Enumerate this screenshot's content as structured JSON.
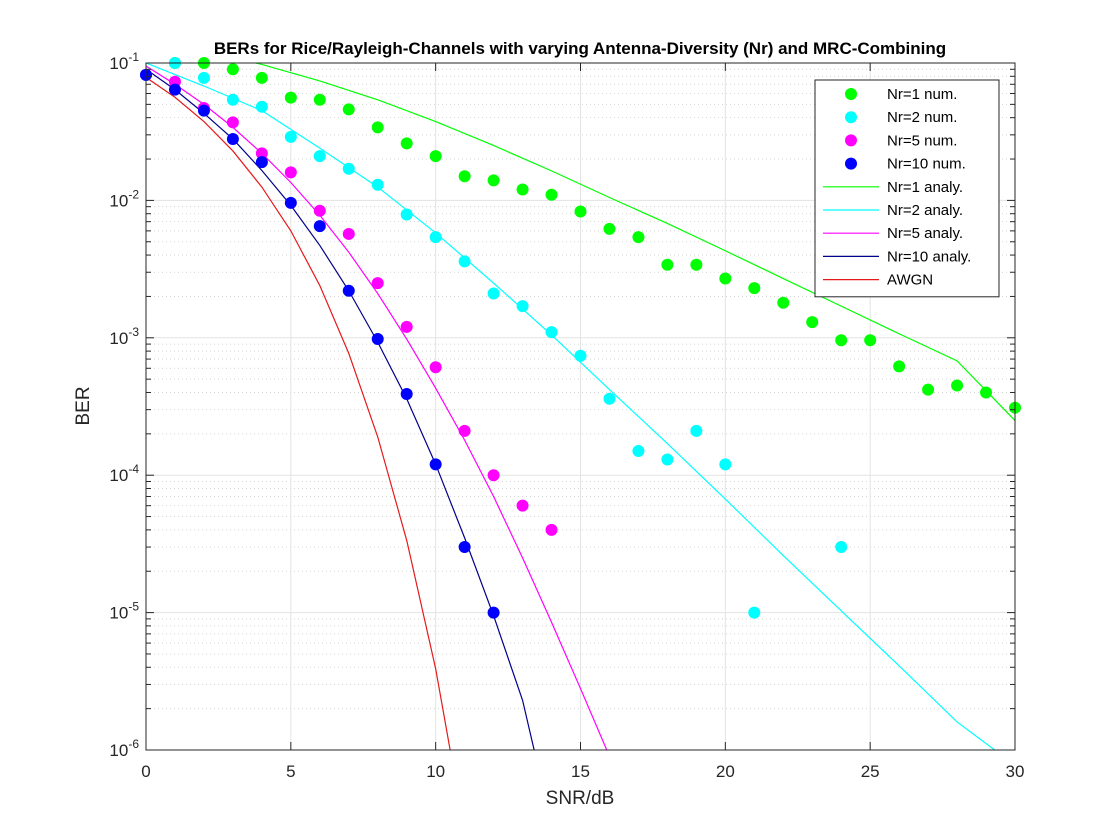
{
  "chart_data": {
    "type": "line",
    "title": "BERs for Rice/Rayleigh-Channels with varying Antenna-Diversity (Nr) and MRC-Combining",
    "xlabel": "SNR/dB",
    "ylabel": "BER",
    "xlim": [
      0,
      30
    ],
    "ylim": [
      1e-06,
      0.1
    ],
    "yscale": "log",
    "grid": true,
    "minor_grid": true,
    "legend_position": "top-right",
    "x_ticks": [
      0,
      5,
      10,
      15,
      20,
      25,
      30
    ],
    "x_tick_labels": [
      "0",
      "5",
      "10",
      "15",
      "20",
      "25",
      "30"
    ],
    "y_ticks": [
      {
        "value": 1e-06,
        "base": "10",
        "exp": "-6"
      },
      {
        "value": 1e-05,
        "base": "10",
        "exp": "-5"
      },
      {
        "value": 0.0001,
        "base": "10",
        "exp": "-4"
      },
      {
        "value": 0.001,
        "base": "10",
        "exp": "-3"
      },
      {
        "value": 0.01,
        "base": "10",
        "exp": "-2"
      },
      {
        "value": 0.1,
        "base": "10",
        "exp": "-1"
      }
    ],
    "series": [
      {
        "name": "Nr=1 num.",
        "style": "markers",
        "color": "#00ff00",
        "x": [
          0,
          1,
          2,
          3,
          4,
          5,
          6,
          7,
          8,
          9,
          10,
          11,
          12,
          13,
          14,
          15,
          16,
          17,
          18,
          19,
          20,
          21,
          22,
          23,
          24,
          25,
          26,
          27,
          28,
          29,
          30
        ],
        "y": [
          0.082,
          0.1,
          0.1,
          0.09,
          0.078,
          0.056,
          0.054,
          0.046,
          0.034,
          0.026,
          0.021,
          0.015,
          0.014,
          0.012,
          0.011,
          0.0083,
          0.0062,
          0.0054,
          0.0034,
          0.0034,
          0.0027,
          0.0023,
          0.0018,
          0.0013,
          0.00096,
          0.00096,
          0.00062,
          0.00042,
          0.00045,
          0.0004,
          0.00031
        ]
      },
      {
        "name": "Nr=2 num.",
        "style": "markers",
        "color": "#00ffff",
        "x": [
          0,
          1,
          2,
          3,
          4,
          5,
          6,
          7,
          8,
          9,
          10,
          11,
          12,
          13,
          14,
          15,
          16,
          17,
          18,
          19,
          20,
          21,
          24
        ],
        "y": [
          0.082,
          0.1,
          0.078,
          0.054,
          0.048,
          0.029,
          0.021,
          0.017,
          0.013,
          0.0079,
          0.0054,
          0.0036,
          0.0021,
          0.0017,
          0.0011,
          0.00074,
          0.00036,
          0.00015,
          0.00013,
          0.00021,
          0.00012,
          1e-05,
          3e-05
        ]
      },
      {
        "name": "Nr=5 num.",
        "style": "markers",
        "color": "#ff00ff",
        "x": [
          0,
          1,
          2,
          3,
          4,
          5,
          6,
          7,
          8,
          9,
          10,
          11,
          12,
          13,
          14
        ],
        "y": [
          0.082,
          0.073,
          0.047,
          0.037,
          0.022,
          0.016,
          0.0084,
          0.0057,
          0.0025,
          0.0012,
          0.00061,
          0.00021,
          0.0001,
          6e-05,
          4e-05
        ]
      },
      {
        "name": "Nr=10 num.",
        "style": "markers",
        "color": "#0000ff",
        "x": [
          0,
          1,
          2,
          3,
          4,
          5,
          6,
          7,
          8,
          9,
          10,
          11,
          12
        ],
        "y": [
          0.082,
          0.064,
          0.045,
          0.028,
          0.019,
          0.0096,
          0.0065,
          0.0022,
          0.00098,
          0.00039,
          0.00012,
          3e-05,
          1e-05
        ]
      },
      {
        "name": "Nr=1 analy.",
        "style": "line",
        "color": "#00ff00",
        "x": [
          0,
          2,
          4,
          6,
          8,
          10,
          12,
          14,
          16,
          18,
          20,
          22,
          24,
          26,
          28,
          30
        ],
        "y": [
          0.146,
          0.122,
          0.0976,
          0.074,
          0.054,
          0.0375,
          0.0251,
          0.0164,
          0.0105,
          0.0068,
          0.0043,
          0.0027,
          0.0017,
          0.00107,
          0.00068,
          0.00025
        ]
      },
      {
        "name": "Nr=2 analy.",
        "style": "line",
        "color": "#00ffff",
        "x": [
          0,
          2,
          4,
          6,
          8,
          10,
          12,
          14,
          16,
          18,
          20,
          22,
          24,
          26,
          28,
          29.3
        ],
        "y": [
          0.1,
          0.068,
          0.045,
          0.024,
          0.0125,
          0.0058,
          0.0025,
          0.00105,
          0.00042,
          0.00017,
          6.7e-05,
          2.6e-05,
          1.03e-05,
          4.1e-06,
          1.6e-06,
          1e-06
        ]
      },
      {
        "name": "Nr=5 analy.",
        "style": "line",
        "color": "#ff00ff",
        "x": [
          0,
          1,
          2,
          3,
          4,
          5,
          6,
          7,
          8,
          9,
          10,
          11,
          12,
          13,
          14,
          15,
          16,
          16.8
        ],
        "y": [
          0.095,
          0.07,
          0.05,
          0.034,
          0.022,
          0.0135,
          0.0078,
          0.0042,
          0.0021,
          0.00098,
          0.00043,
          0.00018,
          7e-05,
          2.5e-05,
          8.5e-06,
          2.8e-06,
          9e-07,
          1e-06
        ]
      },
      {
        "name": "Nr=10 analy.",
        "style": "line",
        "color": "#00008b",
        "x": [
          0,
          1,
          2,
          3,
          4,
          5,
          6,
          7,
          8,
          9,
          10,
          11,
          12,
          13,
          13.4
        ],
        "y": [
          0.09,
          0.064,
          0.043,
          0.028,
          0.0165,
          0.0092,
          0.0047,
          0.0022,
          0.00093,
          0.00036,
          0.00012,
          3.5e-05,
          9.5e-06,
          2.3e-06,
          1e-06
        ]
      },
      {
        "name": "AWGN",
        "style": "line",
        "color": "#e41a1c",
        "x": [
          0,
          1,
          2,
          3,
          4,
          5,
          6,
          7,
          8,
          9,
          10,
          10.5
        ],
        "y": [
          0.0786,
          0.0563,
          0.0375,
          0.0229,
          0.0125,
          0.006,
          0.0024,
          0.00077,
          0.00019,
          3.36e-05,
          3.9e-06,
          1e-06
        ]
      }
    ]
  }
}
